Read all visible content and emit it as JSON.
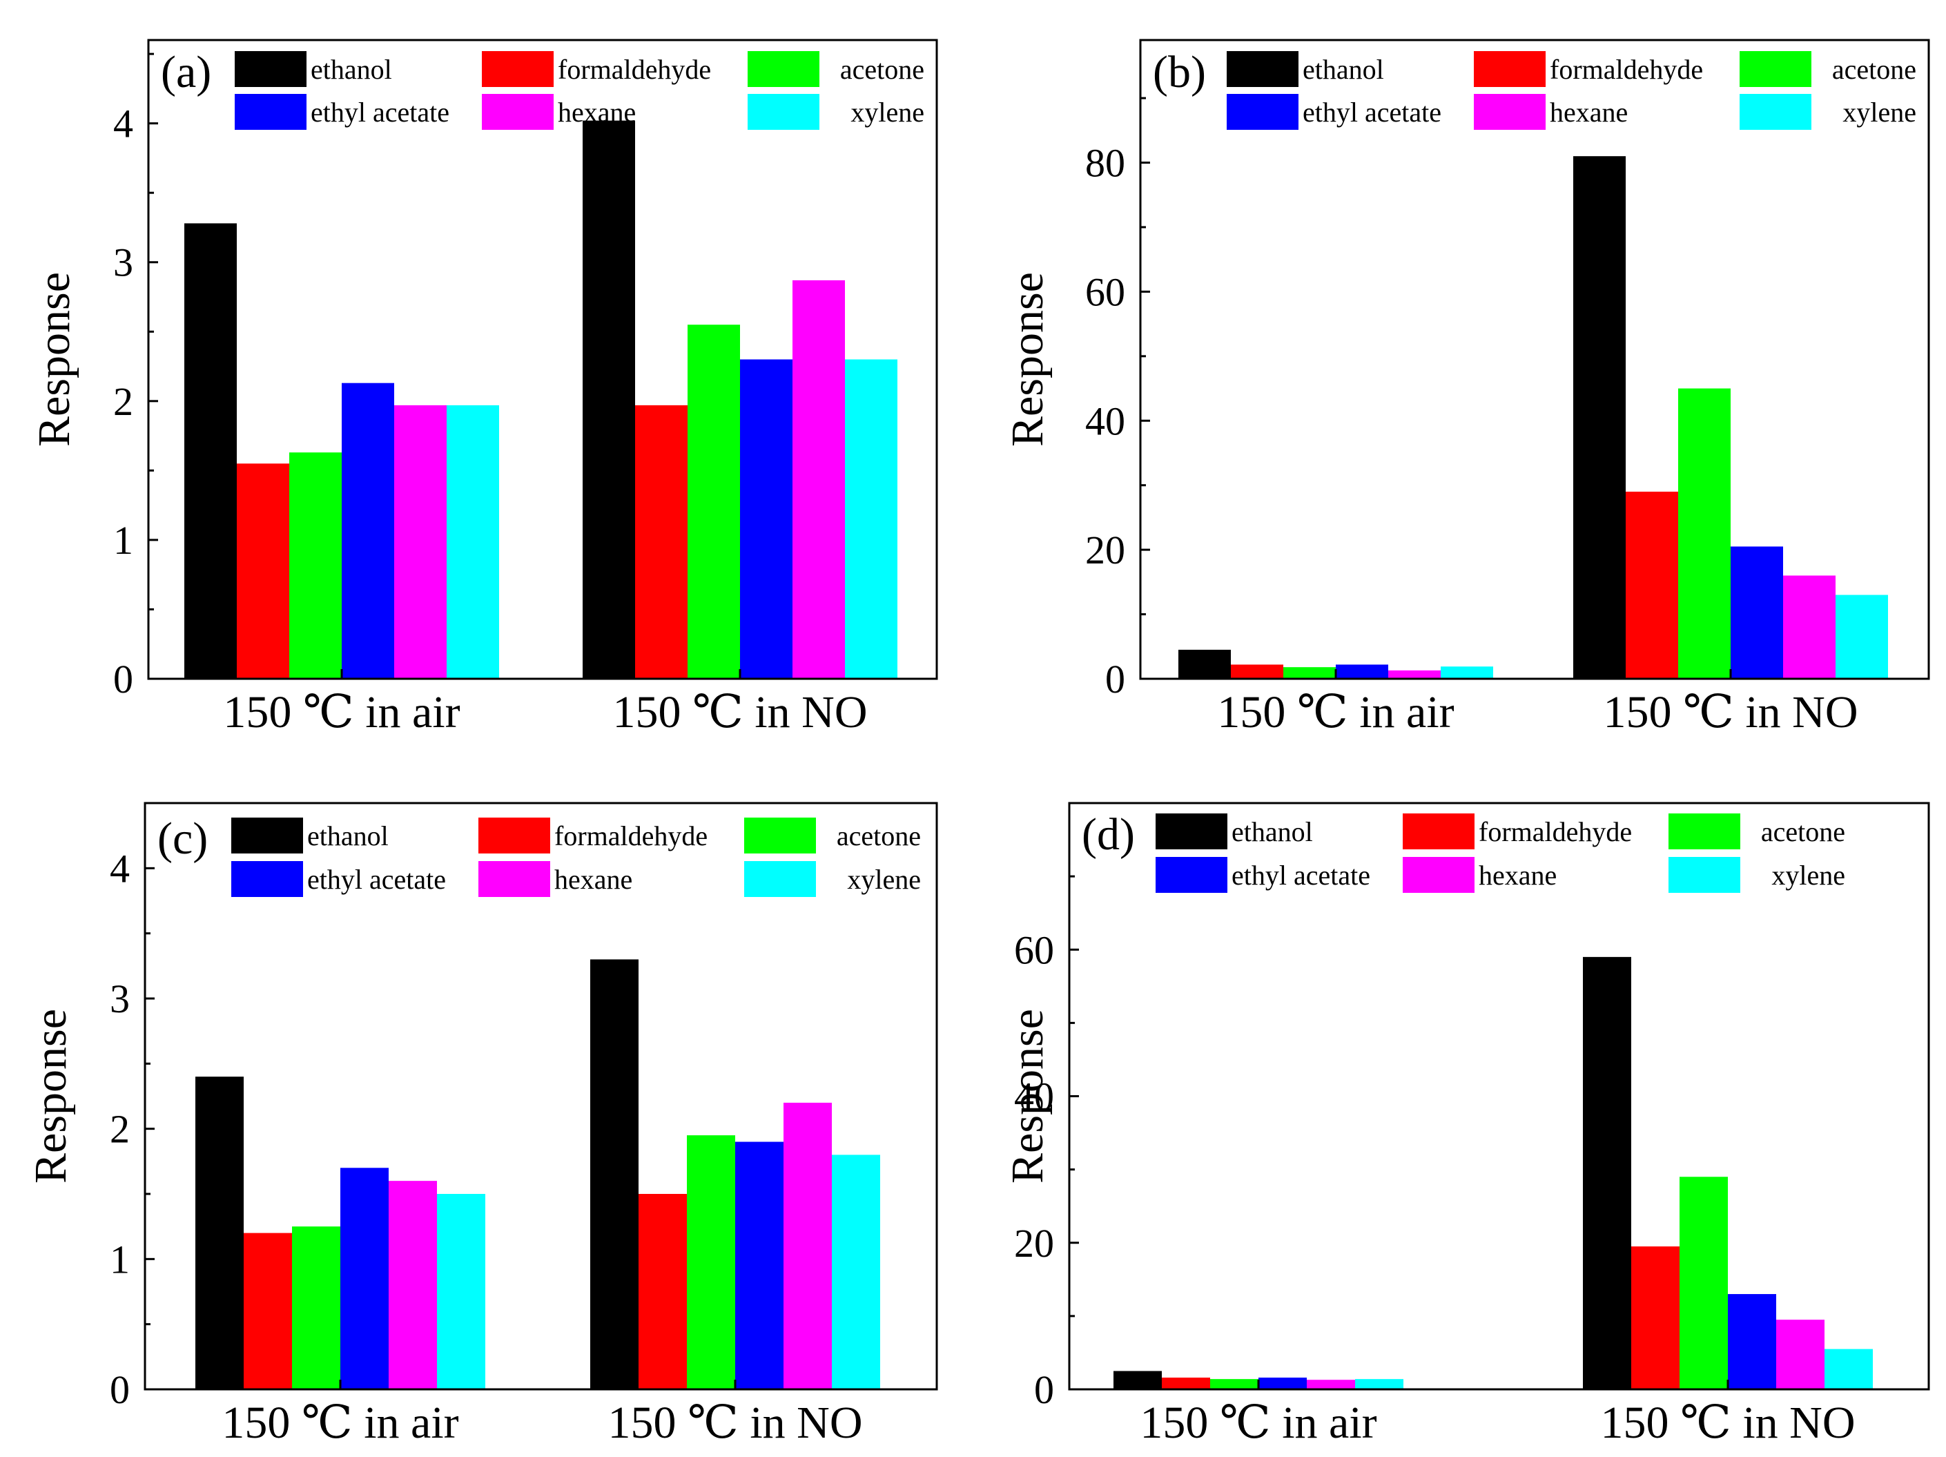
{
  "figure": {
    "panels": [
      "a",
      "b",
      "c",
      "d"
    ]
  },
  "colors": {
    "ethanol": "#000000",
    "formaldehyde": "#ff0000",
    "acetone": "#00ff00",
    "ethyl acetate": "#0000ff",
    "hexane": "#ff00ff",
    "xylene": "#00ffff"
  },
  "chart_data": [
    {
      "type": "bar",
      "panel_label": "(a)",
      "ylabel": "Response",
      "xlabel": "",
      "ylim": [
        0,
        4.6
      ],
      "yticks": [
        "0",
        "1",
        "2",
        "3",
        "4"
      ],
      "categories": [
        "150 ℃ in air",
        "150 ℃ in NO"
      ],
      "legend": [
        "ethanol",
        "formaldehyde",
        "acetone",
        "ethyl acetate",
        "hexane",
        "xylene"
      ],
      "legend_position": "top",
      "series": [
        {
          "name": "ethanol",
          "values": [
            3.28,
            4.02
          ]
        },
        {
          "name": "formaldehyde",
          "values": [
            1.55,
            1.97
          ]
        },
        {
          "name": "acetone",
          "values": [
            1.63,
            2.55
          ]
        },
        {
          "name": "ethyl acetate",
          "values": [
            2.13,
            2.3
          ]
        },
        {
          "name": "hexane",
          "values": [
            1.97,
            2.87
          ]
        },
        {
          "name": "xylene",
          "values": [
            1.97,
            2.3
          ]
        }
      ]
    },
    {
      "type": "bar",
      "panel_label": "(b)",
      "ylabel": "Response",
      "xlabel": "",
      "ylim": [
        0,
        99
      ],
      "yticks": [
        "0",
        "20",
        "40",
        "60",
        "80"
      ],
      "categories": [
        "150 ℃ in air",
        "150 ℃ in NO"
      ],
      "legend": [
        "ethanol",
        "formaldehyde",
        "acetone",
        "ethyl acetate",
        "hexane",
        "xylene"
      ],
      "legend_position": "top",
      "series": [
        {
          "name": "ethanol",
          "values": [
            4.5,
            81
          ]
        },
        {
          "name": "formaldehyde",
          "values": [
            2.2,
            29
          ]
        },
        {
          "name": "acetone",
          "values": [
            1.8,
            45
          ]
        },
        {
          "name": "ethyl acetate",
          "values": [
            2.2,
            20.5
          ]
        },
        {
          "name": "hexane",
          "values": [
            1.3,
            16
          ]
        },
        {
          "name": "xylene",
          "values": [
            1.9,
            13
          ]
        }
      ]
    },
    {
      "type": "bar",
      "panel_label": "(c)",
      "ylabel": "Response",
      "xlabel": "",
      "ylim": [
        0,
        4.5
      ],
      "yticks": [
        "0",
        "1",
        "2",
        "3",
        "4"
      ],
      "categories": [
        "150 ℃ in air",
        "150 ℃ in NO"
      ],
      "legend": [
        "ethanol",
        "formaldehyde",
        "acetone",
        "ethyl acetate",
        "hexane",
        "xylene"
      ],
      "legend_position": "top",
      "series": [
        {
          "name": "ethanol",
          "values": [
            2.4,
            3.3
          ]
        },
        {
          "name": "formaldehyde",
          "values": [
            1.2,
            1.5
          ]
        },
        {
          "name": "acetone",
          "values": [
            1.25,
            1.95
          ]
        },
        {
          "name": "ethyl acetate",
          "values": [
            1.7,
            1.9
          ]
        },
        {
          "name": "hexane",
          "values": [
            1.6,
            2.2
          ]
        },
        {
          "name": "xylene",
          "values": [
            1.5,
            1.8
          ]
        }
      ]
    },
    {
      "type": "bar",
      "panel_label": "(d)",
      "ylabel": "Response",
      "xlabel": "",
      "ylim": [
        0,
        80
      ],
      "yticks": [
        "0",
        "20",
        "40",
        "60"
      ],
      "categories": [
        "150 ℃ in air",
        "150 ℃ in NO"
      ],
      "legend": [
        "ethanol",
        "formaldehyde",
        "acetone",
        "ethyl acetate",
        "hexane",
        "xylene"
      ],
      "legend_position": "top",
      "series": [
        {
          "name": "ethanol",
          "values": [
            2.5,
            59
          ]
        },
        {
          "name": "formaldehyde",
          "values": [
            1.6,
            19.5
          ]
        },
        {
          "name": "acetone",
          "values": [
            1.4,
            29
          ]
        },
        {
          "name": "ethyl acetate",
          "values": [
            1.6,
            13
          ]
        },
        {
          "name": "hexane",
          "values": [
            1.3,
            9.5
          ]
        },
        {
          "name": "xylene",
          "values": [
            1.4,
            5.5
          ]
        }
      ]
    }
  ]
}
